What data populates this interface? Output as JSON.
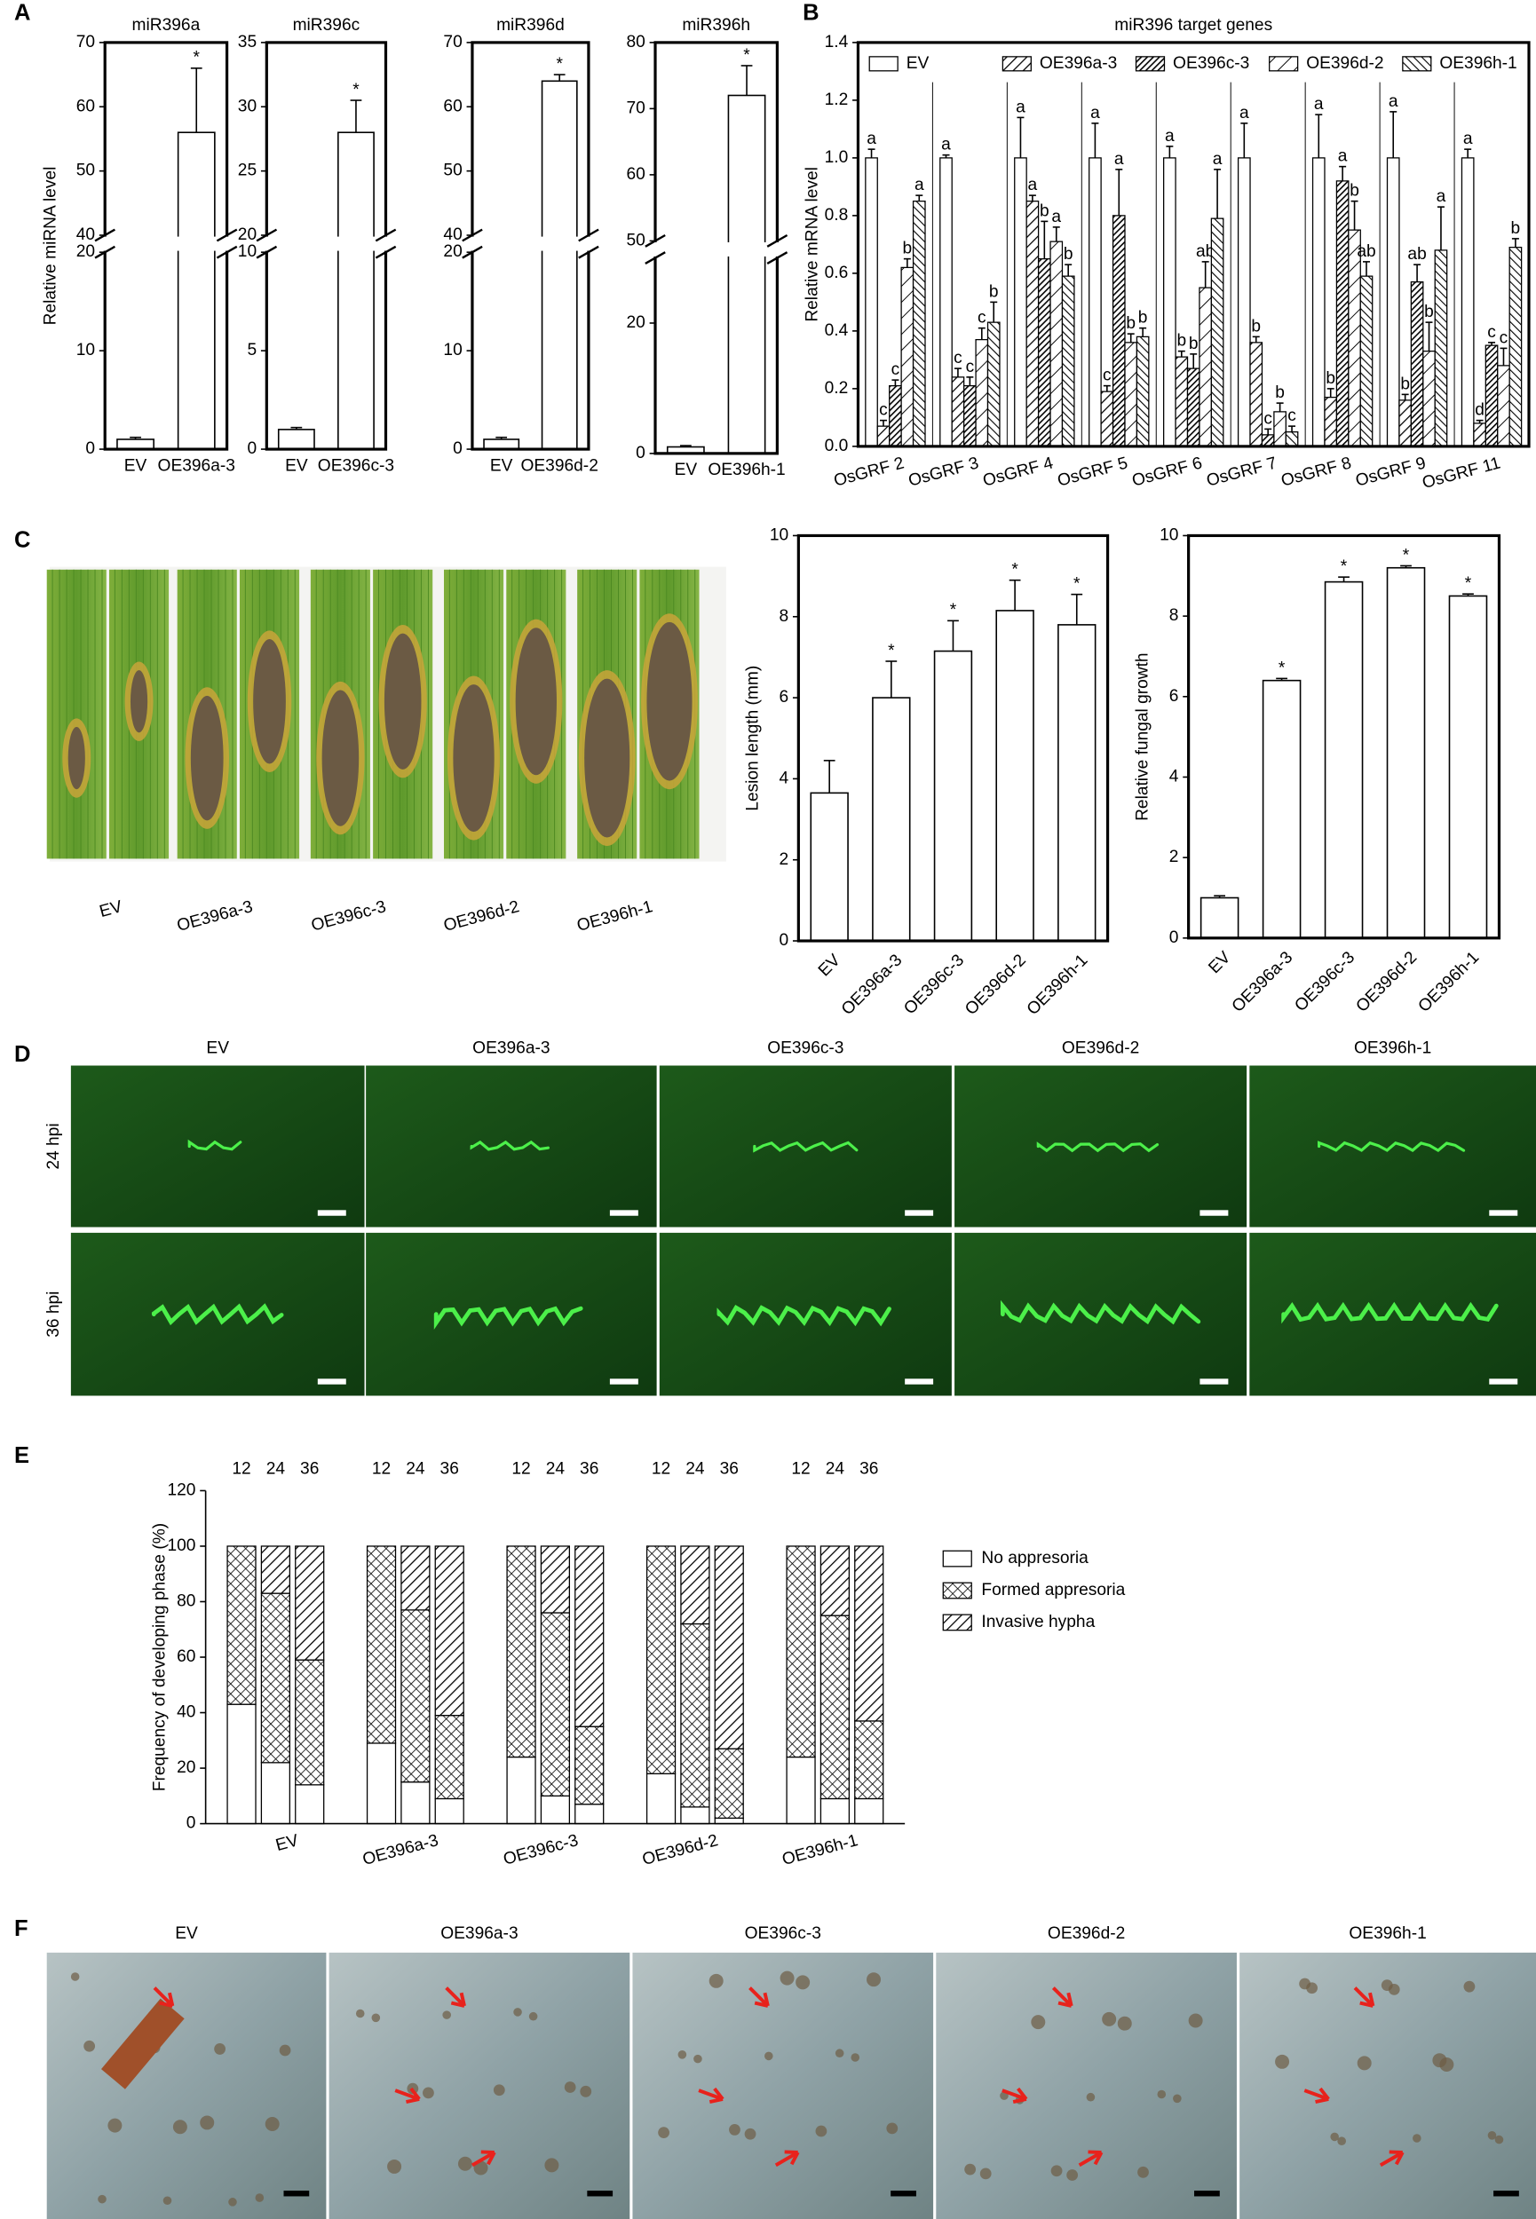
{
  "panel_letters": [
    "A",
    "B",
    "C",
    "D",
    "E",
    "F"
  ],
  "photos": {
    "C": {
      "labels": [
        "EV",
        "OE396a-3",
        "OE396c-3",
        "OE396d-2",
        "OE396h-1"
      ]
    },
    "D": {
      "columns": [
        "EV",
        "OE396a-3",
        "OE396c-3",
        "OE396d-2",
        "OE396h-1"
      ],
      "rows": [
        "24 hpi",
        "36 hpi"
      ]
    },
    "F": {
      "columns": [
        "EV",
        "OE396a-3",
        "OE396c-3",
        "OE396d-2",
        "OE396h-1"
      ]
    }
  },
  "chart_data": [
    {
      "type": "bar",
      "title": "miR396a",
      "y_label": "Relative miRNA level",
      "categories": [
        "EV",
        "OE396a-3"
      ],
      "values": [
        1,
        56
      ],
      "errors": [
        0.2,
        10
      ],
      "significance": [
        null,
        "*"
      ],
      "color": "#ffffff",
      "ylim": [
        0,
        70
      ],
      "axis_break": [
        20,
        40
      ],
      "yticks": [
        0,
        10,
        20,
        40,
        50,
        60,
        70
      ]
    },
    {
      "type": "bar",
      "title": "miR396c",
      "categories": [
        "EV",
        "OE396c-3"
      ],
      "values": [
        1,
        28
      ],
      "errors": [
        0.1,
        2.5
      ],
      "significance": [
        null,
        "*"
      ],
      "color": "#ffffff",
      "ylim": [
        0,
        35
      ],
      "axis_break": [
        10,
        20
      ],
      "yticks": [
        0,
        5,
        10,
        20,
        25,
        30,
        35
      ]
    },
    {
      "type": "bar",
      "title": "miR396d",
      "categories": [
        "EV",
        "OE396d-2"
      ],
      "values": [
        1,
        64
      ],
      "errors": [
        0.2,
        1
      ],
      "significance": [
        null,
        "*"
      ],
      "color": "#ffffff",
      "ylim": [
        0,
        70
      ],
      "axis_break": [
        20,
        40
      ],
      "yticks": [
        0,
        10,
        20,
        40,
        50,
        60,
        70
      ]
    },
    {
      "type": "bar",
      "title": "miR396h",
      "categories": [
        "EV",
        "OE396h-1"
      ],
      "values": [
        1,
        72
      ],
      "errors": [
        0.2,
        4.5
      ],
      "significance": [
        null,
        "*"
      ],
      "color": "#ffffff",
      "ylim": [
        0,
        80
      ],
      "axis_break": [
        30,
        50
      ],
      "yticks": [
        0,
        20,
        50,
        60,
        70,
        80
      ]
    },
    {
      "type": "bar",
      "title": "miR396 target genes",
      "y_label": "Relative mRNA level",
      "categories": [
        "OsGRF 2",
        "OsGRF 3",
        "OsGRF 4",
        "OsGRF 5",
        "OsGRF 6",
        "OsGRF 7",
        "OsGRF 8",
        "OsGRF 9",
        "OsGRF 11"
      ],
      "ylim": [
        0,
        1.4
      ],
      "yticks": [
        {
          "value": 0,
          "label": "0.0"
        },
        0.2,
        0.4,
        0.6,
        0.8,
        {
          "value": 1,
          "label": "1.0"
        },
        1.2,
        1.4
      ],
      "series": [
        {
          "name": "EV",
          "color": "#ffffff",
          "hatch": "none",
          "values": [
            1,
            1,
            1,
            1,
            1,
            1,
            1,
            1,
            1
          ],
          "errors": [
            0.03,
            0.01,
            0.14,
            0.12,
            0.04,
            0.12,
            0.15,
            0.16,
            0.03
          ],
          "letters": [
            "a",
            "a",
            "a",
            "a",
            "a",
            "a",
            "a",
            "a",
            "a"
          ]
        },
        {
          "name": "OE396a-3",
          "color": "#ffffff",
          "hatch": "diagonal",
          "values": [
            0.07,
            0.24,
            0.85,
            0.19,
            0.31,
            0.36,
            0.17,
            0.16,
            0.08
          ],
          "errors": [
            0.02,
            0.03,
            0.02,
            0.02,
            0.02,
            0.02,
            0.03,
            0.02,
            0.01
          ],
          "letters": [
            "c",
            "c",
            "a",
            "c",
            "b",
            "b",
            "b",
            "b",
            "d"
          ]
        },
        {
          "name": "OE396c-3",
          "color": "#ffffff",
          "hatch": "dense",
          "values": [
            0.21,
            0.21,
            0.65,
            0.8,
            0.27,
            0.04,
            0.92,
            0.57,
            0.35
          ],
          "errors": [
            0.02,
            0.03,
            0.13,
            0.16,
            0.05,
            0.02,
            0.05,
            0.06,
            0.01
          ],
          "letters": [
            "c",
            "c",
            "b",
            "a",
            "b",
            "c",
            "a",
            "ab",
            "c"
          ]
        },
        {
          "name": "OE396d-2",
          "color": "#ffffff",
          "hatch": "wide",
          "values": [
            0.62,
            0.37,
            0.71,
            0.36,
            0.55,
            0.12,
            0.75,
            0.33,
            0.28
          ],
          "errors": [
            0.03,
            0.04,
            0.05,
            0.03,
            0.09,
            0.03,
            0.1,
            0.1,
            0.06
          ],
          "letters": [
            "b",
            "c",
            "a",
            "b",
            "ab",
            "b",
            "b",
            "b",
            "c"
          ]
        },
        {
          "name": "OE396h-1",
          "color": "#ffffff",
          "hatch": "back",
          "values": [
            0.85,
            0.43,
            0.59,
            0.38,
            0.79,
            0.05,
            0.59,
            0.68,
            0.69
          ],
          "errors": [
            0.02,
            0.07,
            0.04,
            0.03,
            0.17,
            0.02,
            0.05,
            0.15,
            0.03
          ],
          "letters": [
            "a",
            "b",
            "b",
            "b",
            "a",
            "c",
            "ab",
            "a",
            "b"
          ]
        }
      ]
    },
    {
      "type": "bar",
      "y_label": "Lesion length (mm)",
      "categories": [
        "EV",
        "OE396a-3",
        "OE396c-3",
        "OE396d-2",
        "OE396h-1"
      ],
      "values": [
        3.65,
        6.0,
        7.15,
        8.15,
        7.8
      ],
      "errors": [
        0.8,
        0.9,
        0.75,
        0.75,
        0.75
      ],
      "significance": [
        null,
        "*",
        "*",
        "*",
        "*"
      ],
      "color": "#ffffff",
      "ylim": [
        0,
        10
      ],
      "yticks": [
        0,
        2,
        4,
        6,
        8,
        10
      ]
    },
    {
      "type": "bar",
      "y_label": "Relative fungal growth",
      "categories": [
        "EV",
        "OE396a-3",
        "OE396c-3",
        "OE396d-2",
        "OE396h-1"
      ],
      "values": [
        1.0,
        6.4,
        8.85,
        9.2,
        8.5
      ],
      "errors": [
        0.05,
        0.05,
        0.12,
        0.05,
        0.05
      ],
      "significance": [
        null,
        "*",
        "*",
        "*",
        "*"
      ],
      "color": "#ffffff",
      "ylim": [
        0,
        10
      ],
      "yticks": [
        0,
        2,
        4,
        6,
        8,
        10
      ]
    },
    {
      "type": "stacked",
      "y_label": "Frequency of developing phase (%)",
      "groups": [
        "EV",
        "OE396a-3",
        "OE396c-3",
        "OE396d-2",
        "OE396h-1"
      ],
      "timepoints": [
        "12",
        "24",
        "36"
      ],
      "ylim": [
        0,
        120
      ],
      "yticks": [
        0,
        20,
        40,
        60,
        80,
        100,
        120
      ],
      "series": [
        {
          "name": "No appresoria",
          "color": "#ffffff",
          "hatch": "none",
          "values": [
            43,
            22,
            14,
            29,
            15,
            9,
            24,
            10,
            7,
            18,
            6,
            2,
            24,
            9,
            9
          ]
        },
        {
          "name": "Formed appresoria",
          "color": "#ffffff",
          "hatch": "cross",
          "values": [
            57,
            61,
            45,
            71,
            62,
            30,
            76,
            66,
            28,
            82,
            66,
            25,
            76,
            66,
            28
          ]
        },
        {
          "name": "Invasive hypha",
          "color": "#ffffff",
          "hatch": "diagonal",
          "values": [
            0,
            17,
            41,
            0,
            23,
            61,
            0,
            24,
            65,
            0,
            28,
            73,
            0,
            25,
            63
          ]
        }
      ]
    }
  ]
}
